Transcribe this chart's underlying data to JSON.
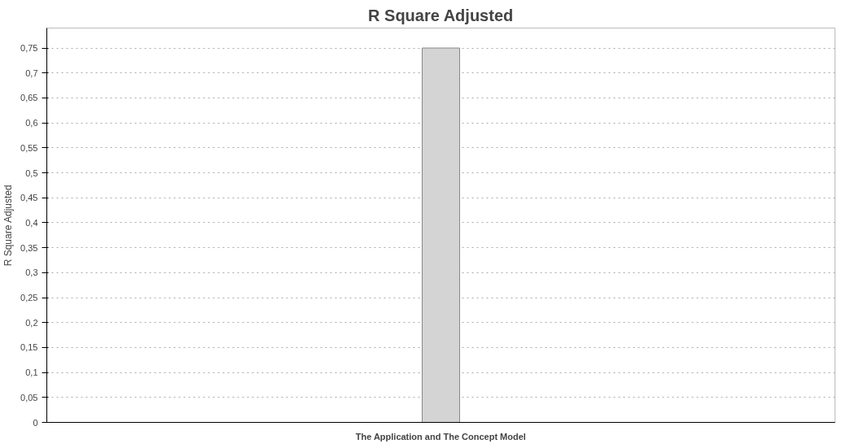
{
  "chart_data": {
    "type": "bar",
    "title": "R Square Adjusted",
    "ylabel": "R Square Adjusted",
    "categories": [
      "The Application and The Concept Model"
    ],
    "values": [
      0.75
    ],
    "color": "#d4d4d4",
    "ylim": [
      0,
      0.79
    ],
    "yticks": [
      0,
      {
        "value": 0.05,
        "label": "0,05"
      },
      {
        "value": 0.1,
        "label": "0,1"
      },
      {
        "value": 0.15,
        "label": "0,15"
      },
      {
        "value": 0.2,
        "label": "0,2"
      },
      {
        "value": 0.25,
        "label": "0,25"
      },
      {
        "value": 0.3,
        "label": "0,3"
      },
      {
        "value": 0.35,
        "label": "0,35"
      },
      {
        "value": 0.4,
        "label": "0,4"
      },
      {
        "value": 0.45,
        "label": "0,45"
      },
      {
        "value": 0.5,
        "label": "0,5"
      },
      {
        "value": 0.55,
        "label": "0,55"
      },
      {
        "value": 0.6,
        "label": "0,6"
      },
      {
        "value": 0.65,
        "label": "0,65"
      },
      {
        "value": 0.7,
        "label": "0,7"
      },
      {
        "value": 0.75,
        "label": "0,75"
      }
    ],
    "grid": "y",
    "line_style": "dotted"
  }
}
